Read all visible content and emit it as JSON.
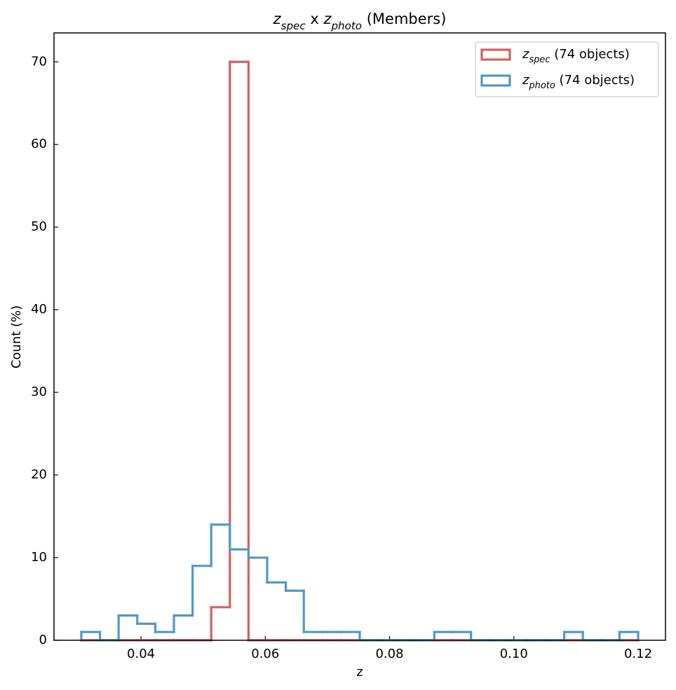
{
  "chart_data": {
    "type": "histogram",
    "title": [
      {
        "text": "z",
        "italic": true
      },
      {
        "text": "spec",
        "italic": true,
        "sub": true
      },
      {
        "text": " x "
      },
      {
        "text": "z",
        "italic": true
      },
      {
        "text": "photo",
        "italic": true,
        "sub": true
      },
      {
        "text": " (Members)"
      }
    ],
    "x_label": "z",
    "y_label": "Count (%)",
    "bins": [
      0.0304,
      0.0334,
      0.0364,
      0.0394,
      0.0423,
      0.0453,
      0.0483,
      0.0513,
      0.0543,
      0.0573,
      0.0603,
      0.0633,
      0.0662,
      0.0692,
      0.0722,
      0.0752,
      0.0782,
      0.0812,
      0.0842,
      0.0872,
      0.0901,
      0.0931,
      0.0961,
      0.0991,
      0.1021,
      0.1051,
      0.1081,
      0.1111,
      0.114,
      0.117,
      0.12
    ],
    "series": [
      {
        "name": [
          {
            "text": "z",
            "italic": true
          },
          {
            "text": "spec",
            "italic": true,
            "sub": true
          },
          {
            "text": " (74 objects)"
          }
        ],
        "color": "#d65f5f",
        "values": [
          0,
          0,
          0,
          0,
          0,
          0,
          0,
          4,
          70,
          0,
          0,
          0,
          0,
          0,
          0,
          0,
          0,
          0,
          0,
          0,
          0,
          0,
          0,
          0,
          0,
          0,
          0,
          0,
          0,
          0
        ]
      },
      {
        "name": [
          {
            "text": "z",
            "italic": true
          },
          {
            "text": "photo",
            "italic": true,
            "sub": true
          },
          {
            "text": " (74 objects)"
          }
        ],
        "color": "#5199c5",
        "values": [
          1,
          0,
          3,
          2,
          1,
          3,
          9,
          14,
          11,
          10,
          7,
          6,
          1,
          1,
          1,
          0,
          0,
          0,
          0,
          1,
          1,
          0,
          0,
          0,
          0,
          0,
          1,
          0,
          0,
          1
        ]
      }
    ],
    "xlim": [
      0.026,
      0.1244
    ],
    "ylim": [
      0,
      73.5
    ],
    "xticks": [
      {
        "value": 0.04,
        "label": "0.04"
      },
      {
        "value": 0.06,
        "label": "0.06"
      },
      {
        "value": 0.08,
        "label": "0.08"
      },
      {
        "value": 0.1,
        "label": "0.10"
      },
      {
        "value": 0.12,
        "label": "0.12"
      }
    ],
    "yticks": [
      0,
      10,
      20,
      30,
      40,
      50,
      60,
      70
    ],
    "legend": "upper right",
    "grid": false
  }
}
